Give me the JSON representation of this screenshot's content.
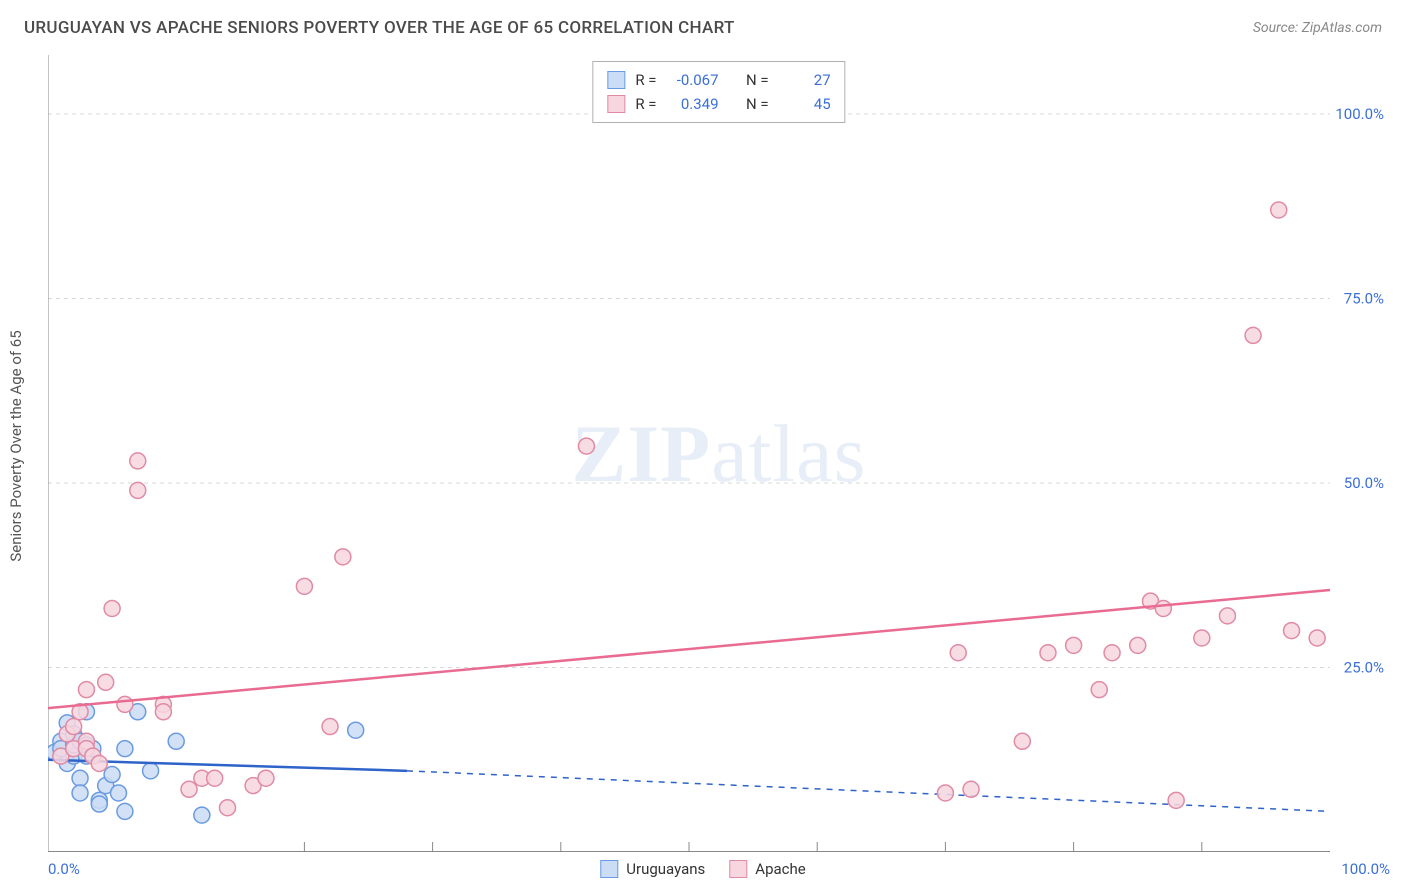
{
  "header": {
    "title": "URUGUAYAN VS APACHE SENIORS POVERTY OVER THE AGE OF 65 CORRELATION CHART",
    "source": "Source: ZipAtlas.com"
  },
  "watermark": {
    "zip": "ZIP",
    "atlas": "atlas"
  },
  "ylabel": "Seniors Poverty Over the Age of 65",
  "chart": {
    "type": "scatter",
    "xlim": [
      0,
      100
    ],
    "ylim": [
      0,
      108
    ],
    "y_ticks": [
      25.0,
      50.0,
      75.0,
      100.0
    ],
    "y_tick_labels": [
      "25.0%",
      "50.0%",
      "75.0%",
      "100.0%"
    ],
    "x_ticks_minor": [
      20,
      30,
      40,
      50,
      60,
      70,
      80,
      90
    ],
    "x_tick_0": "0.0%",
    "x_tick_100": "100.0%",
    "grid_color": "#d8d8d8",
    "axis_color": "#888888",
    "tick_label_color": "#3b6fd8",
    "background_color": "#ffffff",
    "series": [
      {
        "name": "Uruguayans",
        "marker_fill": "#cbdcf5",
        "marker_stroke": "#6a9be0",
        "line_color": "#2e63c9",
        "marker_radius": 8,
        "R": "-0.067",
        "N": "27",
        "regression": {
          "x1": 0,
          "y1": 12.5,
          "x2": 28,
          "y2": 11.0,
          "dash_x2": 100,
          "dash_y2": 5.5
        },
        "points": [
          [
            0.5,
            13.5
          ],
          [
            1,
            15
          ],
          [
            1,
            14
          ],
          [
            1.5,
            12
          ],
          [
            1.5,
            17.5
          ],
          [
            2,
            13
          ],
          [
            2,
            14.5
          ],
          [
            2,
            16
          ],
          [
            2.5,
            10
          ],
          [
            2.5,
            15
          ],
          [
            2.5,
            8
          ],
          [
            3,
            19
          ],
          [
            3,
            13
          ],
          [
            3,
            14.5
          ],
          [
            3.5,
            14
          ],
          [
            4,
            7
          ],
          [
            4,
            6.5
          ],
          [
            4.5,
            9
          ],
          [
            5,
            10.5
          ],
          [
            5.5,
            8
          ],
          [
            6,
            5.5
          ],
          [
            6,
            14
          ],
          [
            7,
            19
          ],
          [
            8,
            11
          ],
          [
            10,
            15
          ],
          [
            12,
            5
          ],
          [
            24,
            16.5
          ]
        ]
      },
      {
        "name": "Apache",
        "marker_fill": "#f7d6df",
        "marker_stroke": "#e08aa4",
        "line_color": "#e96b92",
        "marker_radius": 8,
        "R": "0.349",
        "N": "45",
        "regression": {
          "x1": 0,
          "y1": 19.5,
          "x2": 100,
          "y2": 35.5
        },
        "points": [
          [
            1,
            13
          ],
          [
            1.5,
            16
          ],
          [
            2,
            17
          ],
          [
            2,
            14
          ],
          [
            2.5,
            19
          ],
          [
            3,
            15
          ],
          [
            3,
            22
          ],
          [
            3,
            14
          ],
          [
            3.5,
            13
          ],
          [
            4,
            12
          ],
          [
            4.5,
            23
          ],
          [
            5,
            33
          ],
          [
            6,
            20
          ],
          [
            7,
            53
          ],
          [
            7,
            49
          ],
          [
            9,
            20
          ],
          [
            9,
            19
          ],
          [
            11,
            8.5
          ],
          [
            12,
            10
          ],
          [
            13,
            10
          ],
          [
            14,
            6
          ],
          [
            16,
            9
          ],
          [
            17,
            10
          ],
          [
            20,
            36
          ],
          [
            22,
            17
          ],
          [
            23,
            40
          ],
          [
            42,
            55
          ],
          [
            70,
            8
          ],
          [
            71,
            27
          ],
          [
            72,
            8.5
          ],
          [
            76,
            15
          ],
          [
            78,
            27
          ],
          [
            80,
            28
          ],
          [
            82,
            22
          ],
          [
            83,
            27
          ],
          [
            85,
            28
          ],
          [
            86,
            34
          ],
          [
            87,
            33
          ],
          [
            88,
            7
          ],
          [
            90,
            29
          ],
          [
            92,
            32
          ],
          [
            94,
            70
          ],
          [
            96,
            87
          ],
          [
            97,
            30
          ],
          [
            99,
            29
          ]
        ]
      }
    ]
  },
  "stats_legend": {
    "rows": [
      {
        "r_label": "R =",
        "r_val": "-0.067",
        "n_label": "N =",
        "n_val": "27"
      },
      {
        "r_label": "R =",
        "r_val": "0.349",
        "n_label": "N =",
        "n_val": "45"
      }
    ]
  },
  "bottom_legend": {
    "items": [
      {
        "label": "Uruguayans"
      },
      {
        "label": "Apache"
      }
    ]
  }
}
